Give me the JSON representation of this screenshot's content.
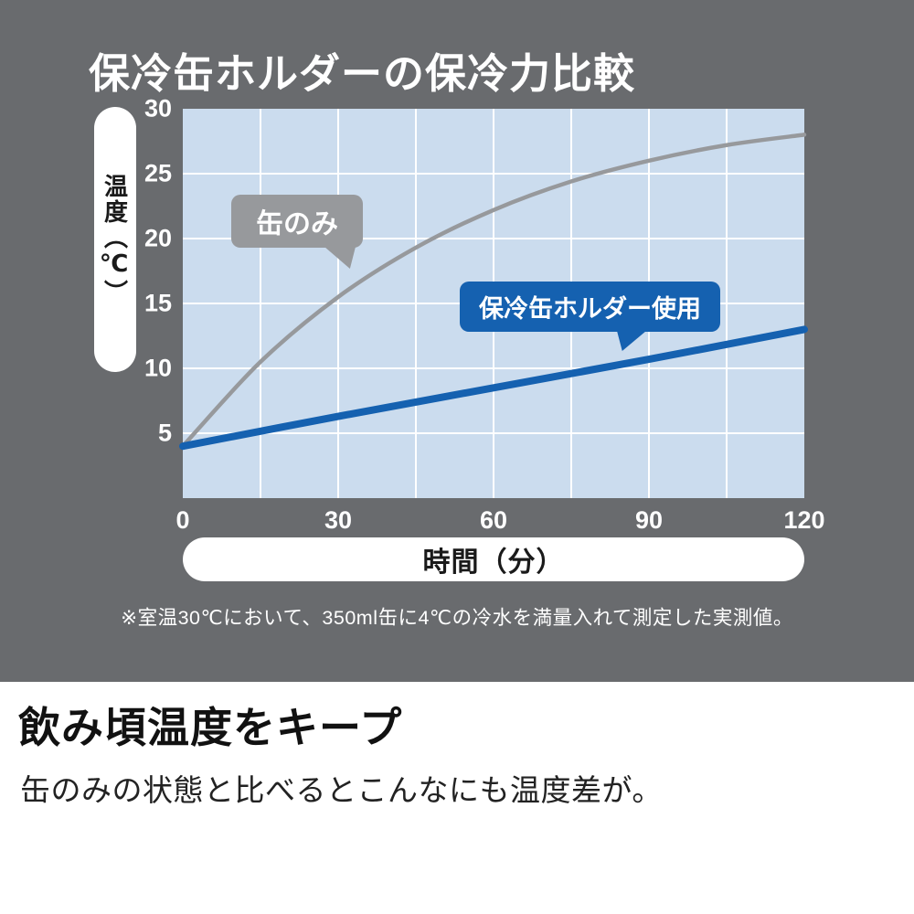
{
  "chart_data": {
    "type": "line",
    "title": "保冷缶ホルダーの保冷力比較",
    "xlabel": "時間（分）",
    "ylabel": "温度（℃）",
    "xlim": [
      0,
      120
    ],
    "ylim": [
      0,
      30
    ],
    "x_ticks": [
      0,
      30,
      60,
      90,
      120
    ],
    "y_ticks": [
      30,
      25,
      20,
      15,
      10,
      5
    ],
    "x_grid_step": 15,
    "y_grid_step": 5,
    "grid": true,
    "plot_bg": "#cbdcee",
    "grid_color": "#ffffff",
    "panel_bg": "#696b6e",
    "series": [
      {
        "name": "缶のみ",
        "color": "#97999c",
        "x": [
          0,
          15,
          30,
          45,
          60,
          75,
          90,
          105,
          120
        ],
        "values": [
          4,
          10.5,
          15.5,
          19.3,
          22.2,
          24.4,
          26,
          27.2,
          28
        ]
      },
      {
        "name": "保冷缶ホルダー使用",
        "color": "#1561b0",
        "x": [
          0,
          30,
          60,
          90,
          120
        ],
        "values": [
          4,
          6.3,
          8.5,
          10.7,
          13
        ]
      }
    ],
    "footnote": "※室温30℃において、350ml缶に4℃の冷水を満量入れて測定した実測値。"
  },
  "caption": {
    "heading": "飲み頃温度をキープ",
    "body": "缶のみの状態と比べるとこんなにも温度差が。"
  }
}
